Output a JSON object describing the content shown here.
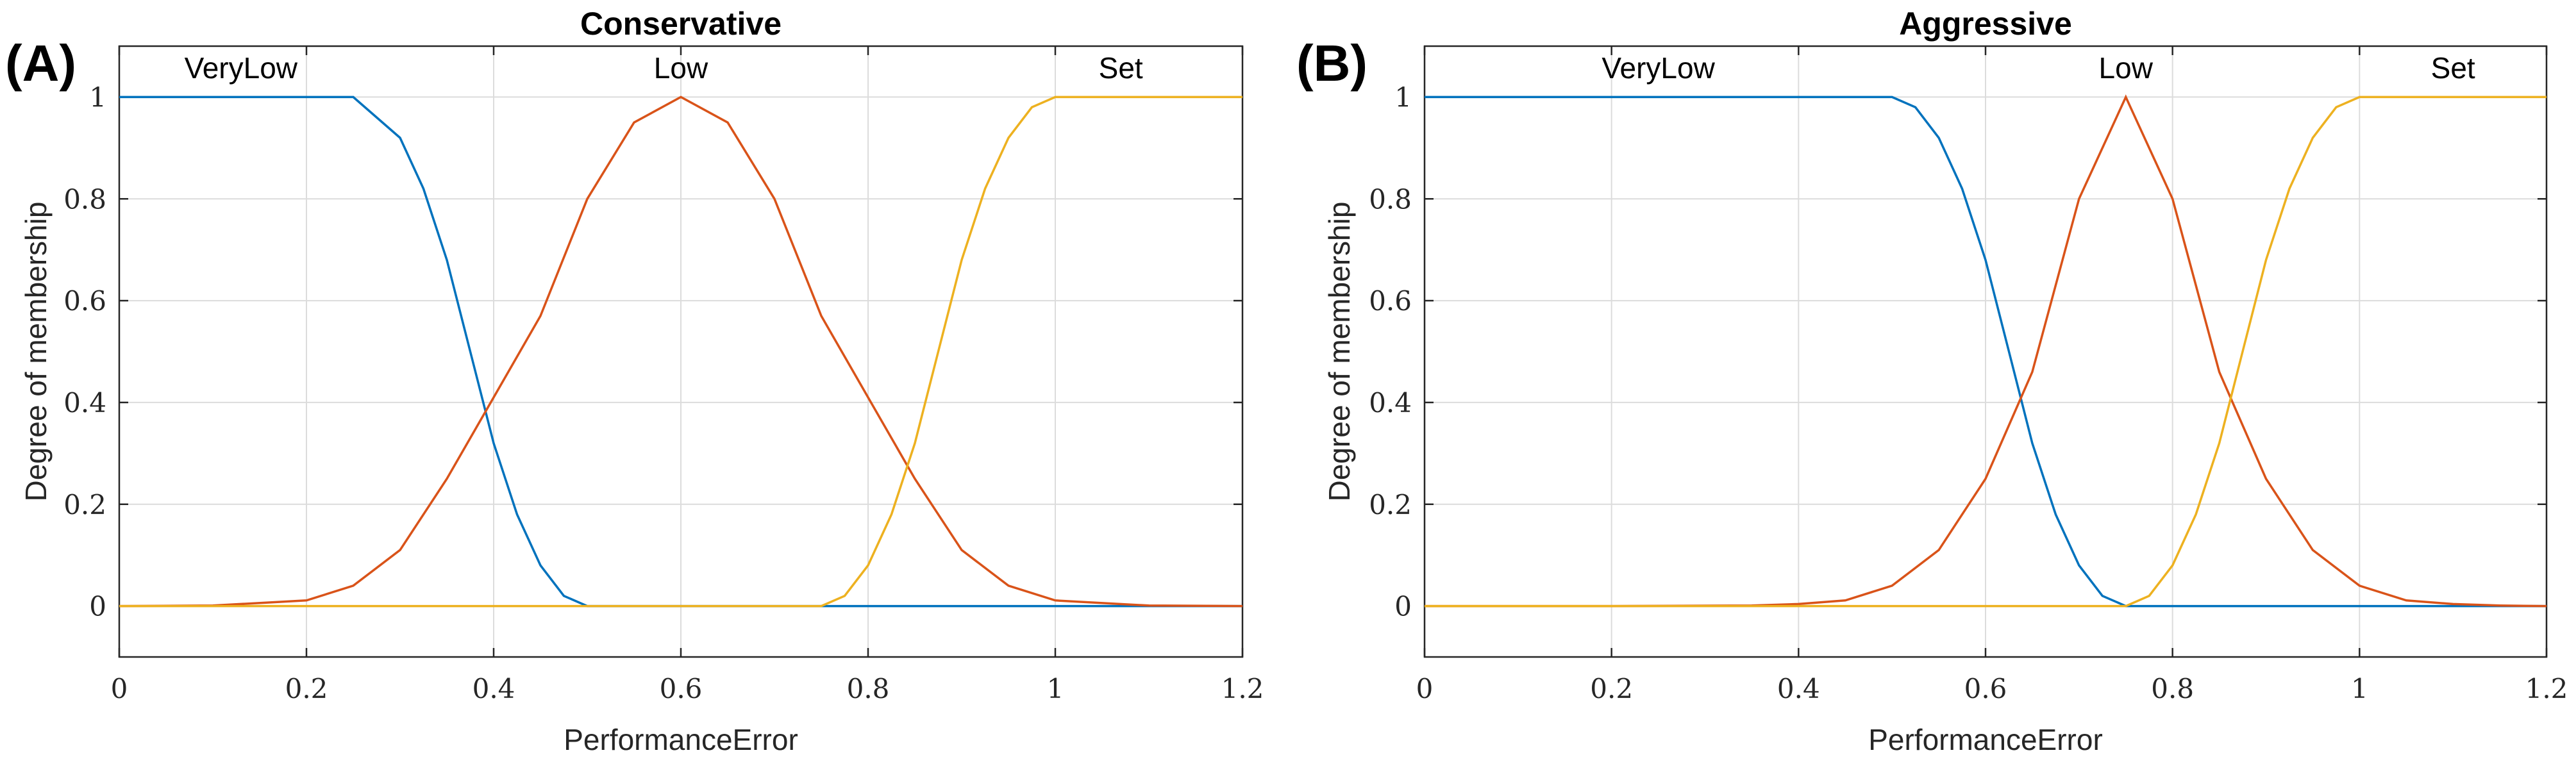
{
  "chart_data": [
    {
      "type": "line",
      "panel_label": "(A)",
      "title": "Conservative",
      "xlabel": "PerformanceError",
      "ylabel": "Degree of membership",
      "xlim": [
        0,
        1.2
      ],
      "ylim": [
        -0.1,
        1.1
      ],
      "xticks": [
        0,
        0.2,
        0.4,
        0.6,
        0.8,
        1,
        1.2
      ],
      "xtick_labels": [
        "0",
        "0.2",
        "0.4",
        "0.6",
        "0.8",
        "1",
        "1.2"
      ],
      "yticks": [
        0,
        0.2,
        0.4,
        0.6,
        0.8,
        1
      ],
      "ytick_labels": [
        "0",
        "0.2",
        "0.4",
        "0.6",
        "0.8",
        "1"
      ],
      "grid": true,
      "series": [
        {
          "name": "VeryLow",
          "label_x": 0.13,
          "color": "#0072BD",
          "x": [
            0,
            0.1,
            0.2,
            0.25,
            0.3,
            0.325,
            0.35,
            0.375,
            0.4,
            0.425,
            0.45,
            0.475,
            0.5,
            0.6,
            0.8,
            1,
            1.2
          ],
          "y": [
            1,
            1,
            1,
            1,
            0.92,
            0.82,
            0.68,
            0.5,
            0.32,
            0.18,
            0.08,
            0.02,
            0,
            0,
            0,
            0,
            0
          ]
        },
        {
          "name": "Low",
          "label_x": 0.6,
          "color": "#D95319",
          "x": [
            0,
            0.1,
            0.2,
            0.25,
            0.3,
            0.35,
            0.4,
            0.45,
            0.5,
            0.55,
            0.6,
            0.65,
            0.7,
            0.75,
            0.8,
            0.85,
            0.9,
            0.95,
            1,
            1.1,
            1.2
          ],
          "y": [
            0,
            0.001,
            0.011,
            0.04,
            0.11,
            0.25,
            0.41,
            0.57,
            0.8,
            0.95,
            1,
            0.95,
            0.8,
            0.57,
            0.41,
            0.25,
            0.11,
            0.04,
            0.011,
            0.001,
            0
          ]
        },
        {
          "name": "Set",
          "label_x": 1.07,
          "color": "#EDB120",
          "x": [
            0,
            0.2,
            0.4,
            0.6,
            0.75,
            0.775,
            0.8,
            0.825,
            0.85,
            0.875,
            0.9,
            0.925,
            0.95,
            0.975,
            1,
            1.1,
            1.2
          ],
          "y": [
            0,
            0,
            0,
            0,
            0,
            0.02,
            0.08,
            0.18,
            0.32,
            0.5,
            0.68,
            0.82,
            0.92,
            0.98,
            1,
            1,
            1
          ]
        }
      ]
    },
    {
      "type": "line",
      "panel_label": "(B)",
      "title": "Aggressive",
      "xlabel": "PerformanceError",
      "ylabel": "Degree of membership",
      "xlim": [
        0,
        1.2
      ],
      "ylim": [
        -0.1,
        1.1
      ],
      "xticks": [
        0,
        0.2,
        0.4,
        0.6,
        0.8,
        1,
        1.2
      ],
      "xtick_labels": [
        "0",
        "0.2",
        "0.4",
        "0.6",
        "0.8",
        "1",
        "1.2"
      ],
      "yticks": [
        0,
        0.2,
        0.4,
        0.6,
        0.8,
        1
      ],
      "ytick_labels": [
        "0",
        "0.2",
        "0.4",
        "0.6",
        "0.8",
        "1"
      ],
      "grid": true,
      "series": [
        {
          "name": "VeryLow",
          "label_x": 0.25,
          "color": "#0072BD",
          "x": [
            0,
            0.2,
            0.4,
            0.5,
            0.525,
            0.55,
            0.575,
            0.6,
            0.625,
            0.65,
            0.675,
            0.7,
            0.725,
            0.75,
            0.8,
            1,
            1.2
          ],
          "y": [
            1,
            1,
            1,
            1,
            0.98,
            0.92,
            0.82,
            0.68,
            0.5,
            0.32,
            0.18,
            0.08,
            0.02,
            0,
            0,
            0,
            0
          ]
        },
        {
          "name": "Low",
          "label_x": 0.75,
          "color": "#D95319",
          "x": [
            0,
            0.2,
            0.35,
            0.4,
            0.45,
            0.5,
            0.55,
            0.6,
            0.65,
            0.7,
            0.75,
            0.8,
            0.85,
            0.9,
            0.95,
            1,
            1.05,
            1.1,
            1.15,
            1.2
          ],
          "y": [
            0,
            0,
            0.001,
            0.004,
            0.011,
            0.04,
            0.11,
            0.25,
            0.46,
            0.8,
            1,
            0.8,
            0.46,
            0.25,
            0.11,
            0.04,
            0.011,
            0.004,
            0.001,
            0
          ]
        },
        {
          "name": "Set",
          "label_x": 1.1,
          "color": "#EDB120",
          "x": [
            0,
            0.2,
            0.4,
            0.6,
            0.75,
            0.775,
            0.8,
            0.825,
            0.85,
            0.875,
            0.9,
            0.925,
            0.95,
            0.975,
            1,
            1.1,
            1.2
          ],
          "y": [
            0,
            0,
            0,
            0,
            0,
            0.02,
            0.08,
            0.18,
            0.32,
            0.5,
            0.68,
            0.82,
            0.92,
            0.98,
            1,
            1,
            1
          ]
        }
      ]
    }
  ]
}
